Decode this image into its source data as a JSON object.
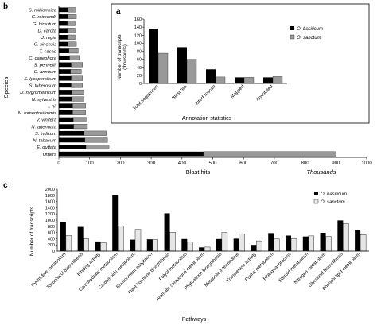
{
  "colors": {
    "basilicum": "#000000",
    "sanctum_gray": "#999999",
    "sanctum_light": "#e6e6e6",
    "axis": "#000000"
  },
  "panel_labels": {
    "a": "a",
    "b": "b",
    "c": "c"
  },
  "chart_data": [
    {
      "panel": "b",
      "type": "bar",
      "orientation": "horizontal",
      "stacked": true,
      "ylabel": "Species",
      "xlabel": "Blast hits",
      "x_unit_label": "Thousands",
      "xlim": [
        0,
        1000
      ],
      "xticks": [
        0,
        100,
        200,
        300,
        400,
        500,
        600,
        700,
        800,
        900,
        1000
      ],
      "legend": [
        "O. basilicum",
        "O. sanctum"
      ],
      "legend_position": "right",
      "categories": [
        "S. miltiorrhiza",
        "G. raimondii",
        "G. hirsutum",
        "D. carota",
        "J. regia",
        "C. sinensis",
        "T. cacao",
        "C. canephora",
        "S. pennellii",
        "C. annuum",
        "S. lycopersicum",
        "S. tuberosum",
        "D. hygrometricum",
        "N. sylvestris",
        "I. nil",
        "N. tomentosiformis",
        "V. vinifera",
        "N. attenuata",
        "S. indicum",
        "N. tabacum",
        "E. guttata",
        "Others"
      ],
      "series": [
        {
          "name": "O. basilicum",
          "values": [
            30,
            30,
            28,
            28,
            28,
            30,
            33,
            35,
            40,
            38,
            40,
            40,
            42,
            42,
            45,
            45,
            47,
            48,
            82,
            85,
            88,
            470
          ]
        },
        {
          "name": "O. sanctum",
          "values": [
            25,
            27,
            25,
            25,
            25,
            27,
            30,
            32,
            37,
            35,
            37,
            37,
            40,
            40,
            42,
            42,
            45,
            45,
            72,
            73,
            75,
            430
          ]
        }
      ]
    },
    {
      "panel": "a",
      "type": "bar",
      "title": "Annotation statistics",
      "ylabel": "Number of transcripts (thousands)",
      "ylim": [
        0,
        160
      ],
      "yticks": [
        0,
        20,
        40,
        60,
        80,
        100,
        120,
        140,
        160
      ],
      "categories": [
        "Total sequences",
        "Blast hits",
        "InterProscan",
        "Mapped",
        "Annotated"
      ],
      "series": [
        {
          "name": "O. basilicum",
          "values": [
            136,
            90,
            35,
            15,
            15
          ]
        },
        {
          "name": "O. sanctum",
          "values": [
            75,
            60,
            16,
            15,
            17
          ]
        }
      ]
    },
    {
      "panel": "c",
      "type": "bar",
      "xlabel": "Pathways",
      "ylabel": "Number of transcripts",
      "ylim": [
        0,
        2000
      ],
      "yticks": [
        0,
        200,
        400,
        600,
        800,
        1000,
        1200,
        1400,
        1600,
        1800,
        2000
      ],
      "categories": [
        "Pyrimidine metabolism",
        "Tocopherol biosynthesis",
        "Binding activity",
        "Carbohydrate metabolism",
        "Carotenoids metabolism",
        "Environment adaptation",
        "Plant hormone biosynthesis",
        "Polyol metabolism",
        "Aromatic compound metabolism",
        "Phytoalexin biosynthesis",
        "Metabolic intermediate",
        "Transferase activity",
        "Purine metabolism",
        "Biological process",
        "Steroid metabolism",
        "Nitrogen metabolism",
        "Glycolipid biosynthesis",
        "Phospholipid metabolism"
      ],
      "series": [
        {
          "name": "O. basilicum",
          "values": [
            930,
            780,
            310,
            1800,
            370,
            380,
            1220,
            390,
            120,
            390,
            400,
            200,
            580,
            500,
            470,
            590,
            990,
            690
          ]
        },
        {
          "name": "O. sanctum",
          "values": [
            500,
            400,
            270,
            800,
            700,
            370,
            610,
            290,
            130,
            600,
            560,
            330,
            390,
            400,
            490,
            470,
            890,
            530
          ]
        }
      ]
    }
  ]
}
